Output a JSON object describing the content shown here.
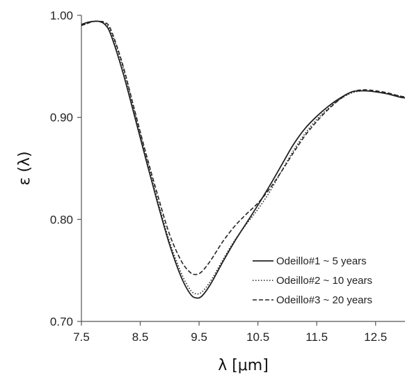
{
  "chart_data": {
    "type": "line",
    "title": "",
    "xlabel": "λ [μm]",
    "ylabel": "ε (λ)",
    "xlim": [
      7.5,
      13.0
    ],
    "ylim": [
      0.7,
      1.0
    ],
    "xticks": [
      "7.5",
      "8.5",
      "9.5",
      "10.5",
      "11.5",
      "12.5"
    ],
    "yticks": [
      "0.70",
      "0.80",
      "0.90",
      "1.00"
    ],
    "grid": false,
    "legend_position": "bottom-right",
    "series": [
      {
        "name": "Odeillo#1 ~ 5 years",
        "style": "solid",
        "x": [
          7.5,
          7.6,
          7.7,
          7.8,
          7.9,
          8.0,
          8.2,
          8.4,
          8.6,
          8.8,
          9.0,
          9.2,
          9.35,
          9.45,
          9.55,
          9.7,
          9.9,
          10.1,
          10.3,
          10.5,
          10.7,
          10.9,
          11.1,
          11.3,
          11.5,
          11.7,
          11.9,
          12.1,
          12.3,
          12.5,
          12.7,
          12.9,
          13.0
        ],
        "y": [
          0.991,
          0.993,
          0.994,
          0.994,
          0.991,
          0.981,
          0.945,
          0.902,
          0.858,
          0.815,
          0.775,
          0.743,
          0.727,
          0.723,
          0.725,
          0.737,
          0.758,
          0.778,
          0.796,
          0.814,
          0.833,
          0.853,
          0.873,
          0.889,
          0.901,
          0.911,
          0.919,
          0.925,
          0.926,
          0.925,
          0.923,
          0.92,
          0.919
        ]
      },
      {
        "name": "Odeillo#2 ~ 10 years",
        "style": "dotted",
        "x": [
          7.5,
          7.6,
          7.7,
          7.8,
          7.9,
          8.0,
          8.2,
          8.4,
          8.6,
          8.8,
          9.0,
          9.2,
          9.35,
          9.45,
          9.55,
          9.7,
          9.9,
          10.1,
          10.3,
          10.5,
          10.7,
          10.9,
          11.1,
          11.3,
          11.5,
          11.7,
          11.9,
          12.1,
          12.3,
          12.5,
          12.7,
          12.9,
          13.0
        ],
        "y": [
          0.99,
          0.992,
          0.994,
          0.994,
          0.992,
          0.984,
          0.95,
          0.906,
          0.861,
          0.818,
          0.778,
          0.747,
          0.731,
          0.727,
          0.729,
          0.74,
          0.76,
          0.779,
          0.795,
          0.81,
          0.827,
          0.847,
          0.867,
          0.884,
          0.898,
          0.909,
          0.918,
          0.924,
          0.926,
          0.925,
          0.923,
          0.921,
          0.92
        ]
      },
      {
        "name": "Odeillo#3 ~ 20 years",
        "style": "dashed",
        "x": [
          7.5,
          7.6,
          7.7,
          7.8,
          7.9,
          8.0,
          8.2,
          8.4,
          8.6,
          8.8,
          9.0,
          9.2,
          9.35,
          9.45,
          9.55,
          9.7,
          9.9,
          10.1,
          10.3,
          10.5,
          10.7,
          10.9,
          11.1,
          11.3,
          11.5,
          11.7,
          11.9,
          12.1,
          12.3,
          12.5,
          12.7,
          12.9,
          13.0
        ],
        "y": [
          0.99,
          0.992,
          0.994,
          0.994,
          0.993,
          0.986,
          0.952,
          0.908,
          0.864,
          0.823,
          0.785,
          0.759,
          0.748,
          0.746,
          0.749,
          0.76,
          0.778,
          0.793,
          0.805,
          0.816,
          0.83,
          0.847,
          0.865,
          0.882,
          0.896,
          0.908,
          0.918,
          0.925,
          0.927,
          0.926,
          0.924,
          0.921,
          0.92
        ]
      }
    ]
  }
}
